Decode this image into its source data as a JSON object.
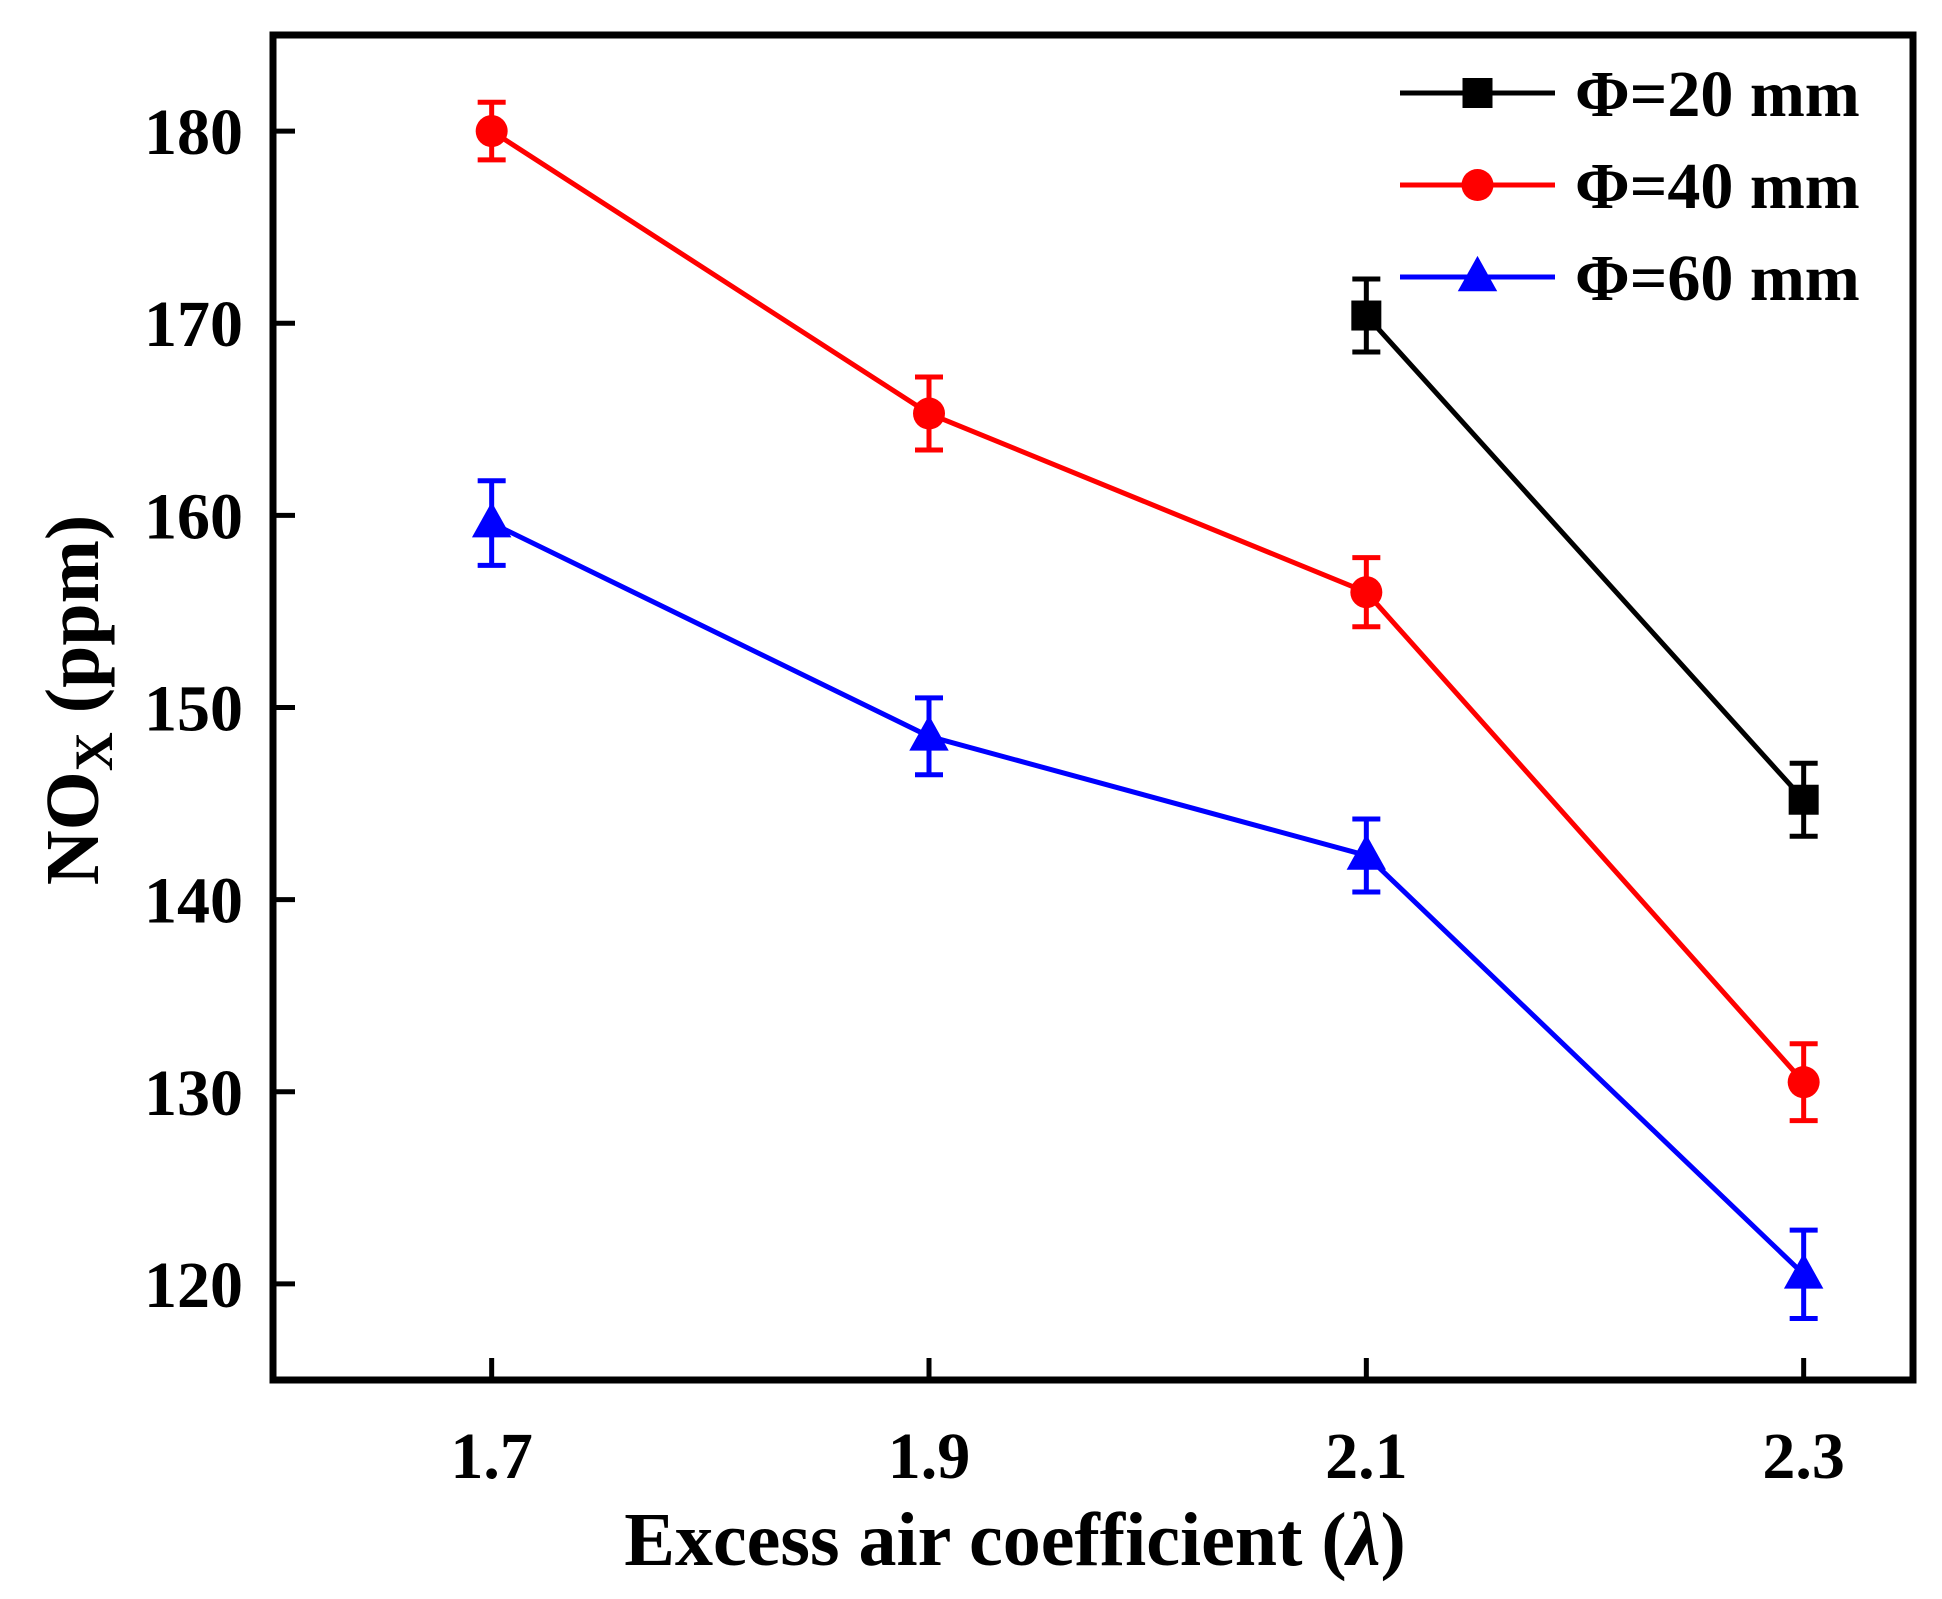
{
  "chart_data": {
    "type": "line",
    "title": "",
    "xlabel": "Excess air coefficient (",
    "xlabel_symbol": "λ",
    "xlabel_close": ")",
    "ylabel_main": "NO",
    "ylabel_sub": "X",
    "ylabel_unit": " (ppm)",
    "x_ticks": [
      "1.7",
      "1.9",
      "2.1",
      "2.3"
    ],
    "y_ticks": [
      "120",
      "130",
      "140",
      "150",
      "160",
      "170",
      "180"
    ],
    "xlim": [
      1.6,
      2.35
    ],
    "ylim": [
      115,
      185
    ],
    "legend_position": "top-right",
    "series": [
      {
        "name": "Φ=20 mm",
        "color": "#000000",
        "marker": "square",
        "x": [
          2.1,
          2.3
        ],
        "values": [
          170.4,
          145.2
        ],
        "errors": [
          1.9,
          1.9
        ]
      },
      {
        "name": "Φ=40 mm",
        "color": "#ff0000",
        "marker": "circle",
        "x": [
          1.7,
          1.9,
          2.1,
          2.3
        ],
        "values": [
          180.0,
          165.3,
          156.0,
          130.5
        ],
        "errors": [
          1.5,
          1.9,
          1.8,
          2.0
        ]
      },
      {
        "name": "Φ=60 mm",
        "color": "#0000ff",
        "marker": "triangle",
        "x": [
          1.7,
          1.9,
          2.1,
          2.3
        ],
        "values": [
          159.6,
          148.5,
          142.3,
          120.5
        ],
        "errors": [
          2.2,
          2.0,
          1.9,
          2.3
        ]
      }
    ]
  }
}
